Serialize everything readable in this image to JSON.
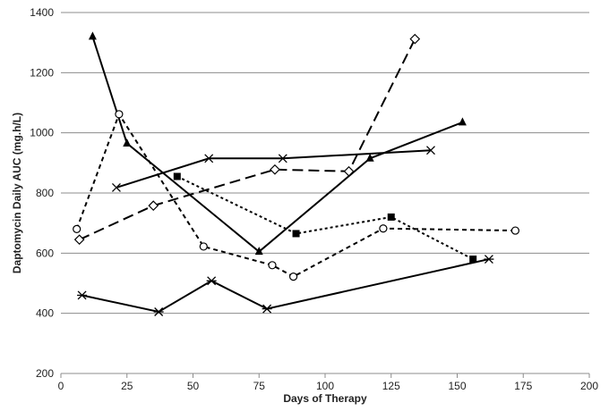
{
  "chart_data": {
    "type": "line",
    "title": "",
    "xlabel": "Days of Therapy",
    "ylabel": "Daptomycin Daily AUC (mg.h/L)",
    "xlim": [
      0,
      200
    ],
    "ylim": [
      200,
      1400
    ],
    "xticks": [
      0,
      25,
      50,
      75,
      100,
      125,
      150,
      175,
      200
    ],
    "yticks": [
      200,
      400,
      600,
      800,
      1000,
      1200,
      1400
    ],
    "grid": "horizontal",
    "legend": "none",
    "series": [
      {
        "marker": "triangle-filled",
        "line": "solid",
        "points": [
          [
            12,
            1320
          ],
          [
            25,
            965
          ],
          [
            75,
            605
          ],
          [
            117,
            915
          ],
          [
            152,
            1035
          ]
        ]
      },
      {
        "marker": "circle-open",
        "line": "short-dash",
        "points": [
          [
            6,
            680
          ],
          [
            22,
            1062
          ],
          [
            54,
            622
          ],
          [
            80,
            560
          ],
          [
            88,
            522
          ],
          [
            122,
            682
          ],
          [
            172,
            675
          ]
        ]
      },
      {
        "marker": "x",
        "line": "solid",
        "points": [
          [
            21,
            818
          ],
          [
            56,
            915
          ],
          [
            84,
            915
          ],
          [
            140,
            942
          ]
        ]
      },
      {
        "marker": "diamond-open",
        "line": "long-dash",
        "points": [
          [
            7,
            645
          ],
          [
            35,
            758
          ],
          [
            81,
            878
          ],
          [
            109,
            872
          ],
          [
            134,
            1312
          ]
        ]
      },
      {
        "marker": "square-filled",
        "line": "dot",
        "points": [
          [
            44,
            855
          ],
          [
            89,
            665
          ],
          [
            125,
            720
          ],
          [
            156,
            580
          ]
        ]
      },
      {
        "marker": "asterisk",
        "line": "solid",
        "points": [
          [
            8,
            460
          ],
          [
            37,
            405
          ],
          [
            57,
            508
          ],
          [
            78,
            415
          ],
          [
            162,
            580
          ]
        ]
      }
    ]
  }
}
